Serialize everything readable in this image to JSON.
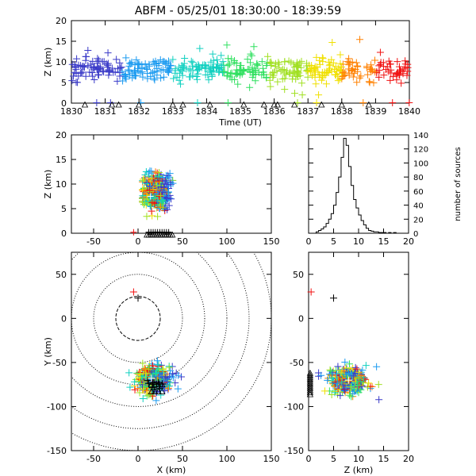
{
  "title": "ABFM - 05/25/01 18:30:00 - 18:39:59",
  "chart_data": [
    {
      "id": "time-height",
      "type": "scatter",
      "xlabel": "Time (UT)",
      "ylabel": "Z (km)",
      "xlim": [
        1830,
        1840
      ],
      "ylim": [
        0,
        20
      ],
      "xticks": [
        "1830",
        "1831",
        "1832",
        "1833",
        "1834",
        "1835",
        "1836",
        "1837",
        "1838",
        "1839",
        "1840"
      ],
      "yticks": [
        0,
        5,
        10,
        15,
        20
      ],
      "marker": "plus",
      "color_scale": "time-rainbow purple→red",
      "source_z_range": [
        2,
        17
      ],
      "source_z_mode": 8,
      "station_triangles_time": [
        1830.4,
        1831.2,
        1831.4,
        1832.0,
        1833.0,
        1833.3,
        1834.1,
        1835.1,
        1835.7,
        1836.0,
        1836.1,
        1836.6,
        1837.4,
        1838.0,
        1838.8
      ]
    },
    {
      "id": "x-z",
      "type": "scatter",
      "xlabel": "",
      "ylabel": "Z (km)",
      "xlim": [
        -75,
        150
      ],
      "ylim": [
        0,
        20
      ],
      "xticks": [
        -50,
        0,
        50,
        100,
        150
      ],
      "yticks": [
        0,
        5,
        10,
        15,
        20
      ],
      "source_x_range": [
        5,
        55
      ],
      "source_z_range": [
        3,
        17
      ]
    },
    {
      "id": "histogram",
      "type": "bar",
      "xlabel": "",
      "ylabel": "number of sources",
      "xlim": [
        0,
        20
      ],
      "ylim": [
        0,
        140
      ],
      "xticks": [
        0,
        5,
        10,
        15,
        20
      ],
      "yticks": [
        0,
        20,
        40,
        60,
        80,
        100,
        120,
        140
      ],
      "bin_width_km": 0.5,
      "bins_start": [
        0,
        0.5,
        1,
        1.5,
        2,
        2.5,
        3,
        3.5,
        4,
        4.5,
        5,
        5.5,
        6,
        6.5,
        7,
        7.5,
        8,
        8.5,
        9,
        9.5,
        10,
        10.5,
        11,
        11.5,
        12,
        12.5,
        13,
        13.5,
        14,
        14.5,
        15,
        15.5,
        16,
        16.5,
        17,
        17.5,
        18,
        18.5,
        19,
        19.5
      ],
      "values": [
        0,
        0,
        0,
        2,
        4,
        6,
        9,
        14,
        20,
        28,
        40,
        58,
        80,
        108,
        135,
        125,
        95,
        68,
        48,
        36,
        26,
        18,
        12,
        7,
        4,
        3,
        2,
        2,
        1,
        1,
        1,
        0,
        1,
        0,
        1,
        0,
        0,
        0,
        0,
        0
      ]
    },
    {
      "id": "plan-view",
      "type": "scatter",
      "xlabel": "X (km)",
      "ylabel": "Y (km)",
      "xlim": [
        -75,
        150
      ],
      "ylim": [
        -150,
        75
      ],
      "xticks": [
        -50,
        0,
        50,
        100,
        150
      ],
      "yticks": [
        -150,
        -100,
        -50,
        0,
        50
      ],
      "range_rings_km": [
        25,
        50,
        75,
        100,
        125,
        150
      ],
      "cluster_center": [
        15,
        -70
      ],
      "outlier_points": [
        [
          -5,
          30
        ],
        [
          0,
          23
        ]
      ]
    },
    {
      "id": "z-y",
      "type": "scatter",
      "xlabel": "Z (km)",
      "ylabel": "",
      "xlim": [
        0,
        20
      ],
      "ylim": [
        -150,
        75
      ],
      "xticks": [
        0,
        5,
        10,
        15,
        20
      ],
      "yticks": [
        -150,
        -100,
        -50,
        0,
        50
      ],
      "cluster_center": [
        8,
        -70
      ],
      "outlier_points": [
        [
          0.5,
          30
        ],
        [
          5,
          23
        ]
      ]
    }
  ]
}
